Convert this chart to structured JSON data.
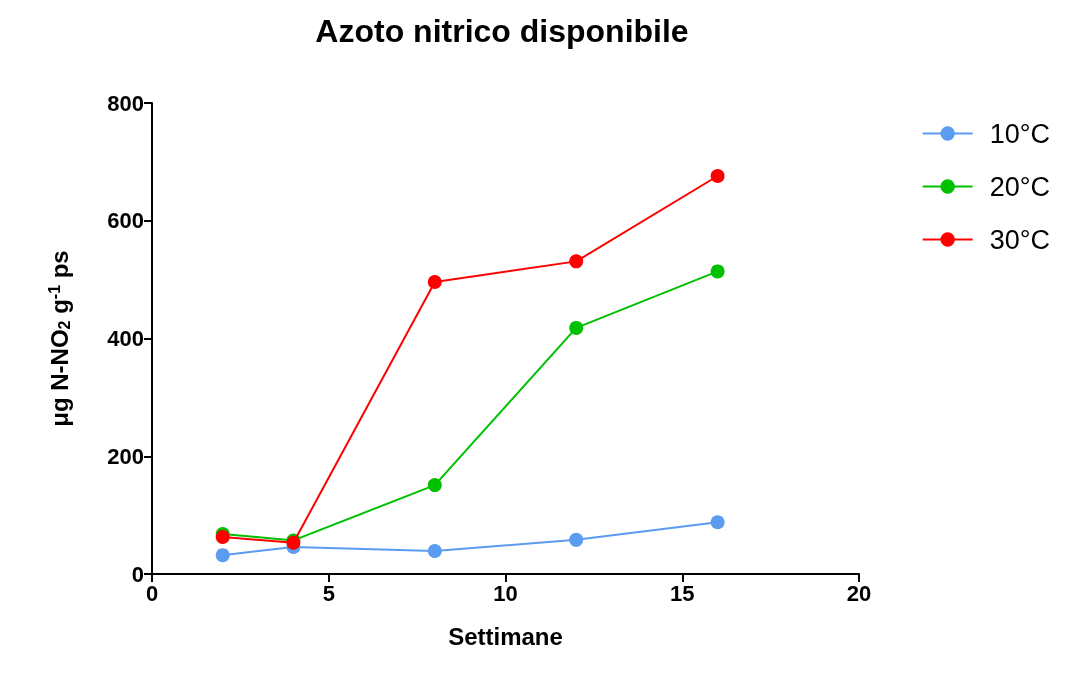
{
  "chart_data": {
    "type": "line",
    "title": "Azoto nitrico disponibile",
    "xlabel": "Settimane",
    "ylabel": "μg N-NO$_{2}$ g$^{-1}$ ps",
    "x": [
      2,
      4,
      8,
      12,
      16
    ],
    "series": [
      {
        "name": "10°C",
        "color": "#5b9bf0",
        "values": [
          32,
          46,
          39,
          58,
          88
        ]
      },
      {
        "name": "20°C",
        "color": "#00c000",
        "values": [
          68,
          57,
          151,
          418,
          514
        ]
      },
      {
        "name": "30°C",
        "color": "#ff0000",
        "values": [
          63,
          53,
          496,
          531,
          676
        ]
      }
    ],
    "xlim": [
      0,
      20
    ],
    "xticks": [
      0,
      5,
      10,
      15,
      20
    ],
    "ylim": [
      0,
      800
    ],
    "yticks": [
      0,
      200,
      400,
      600,
      800
    ],
    "grid": false,
    "legend": "top right",
    "marker": "circle",
    "line_style": "solid"
  }
}
